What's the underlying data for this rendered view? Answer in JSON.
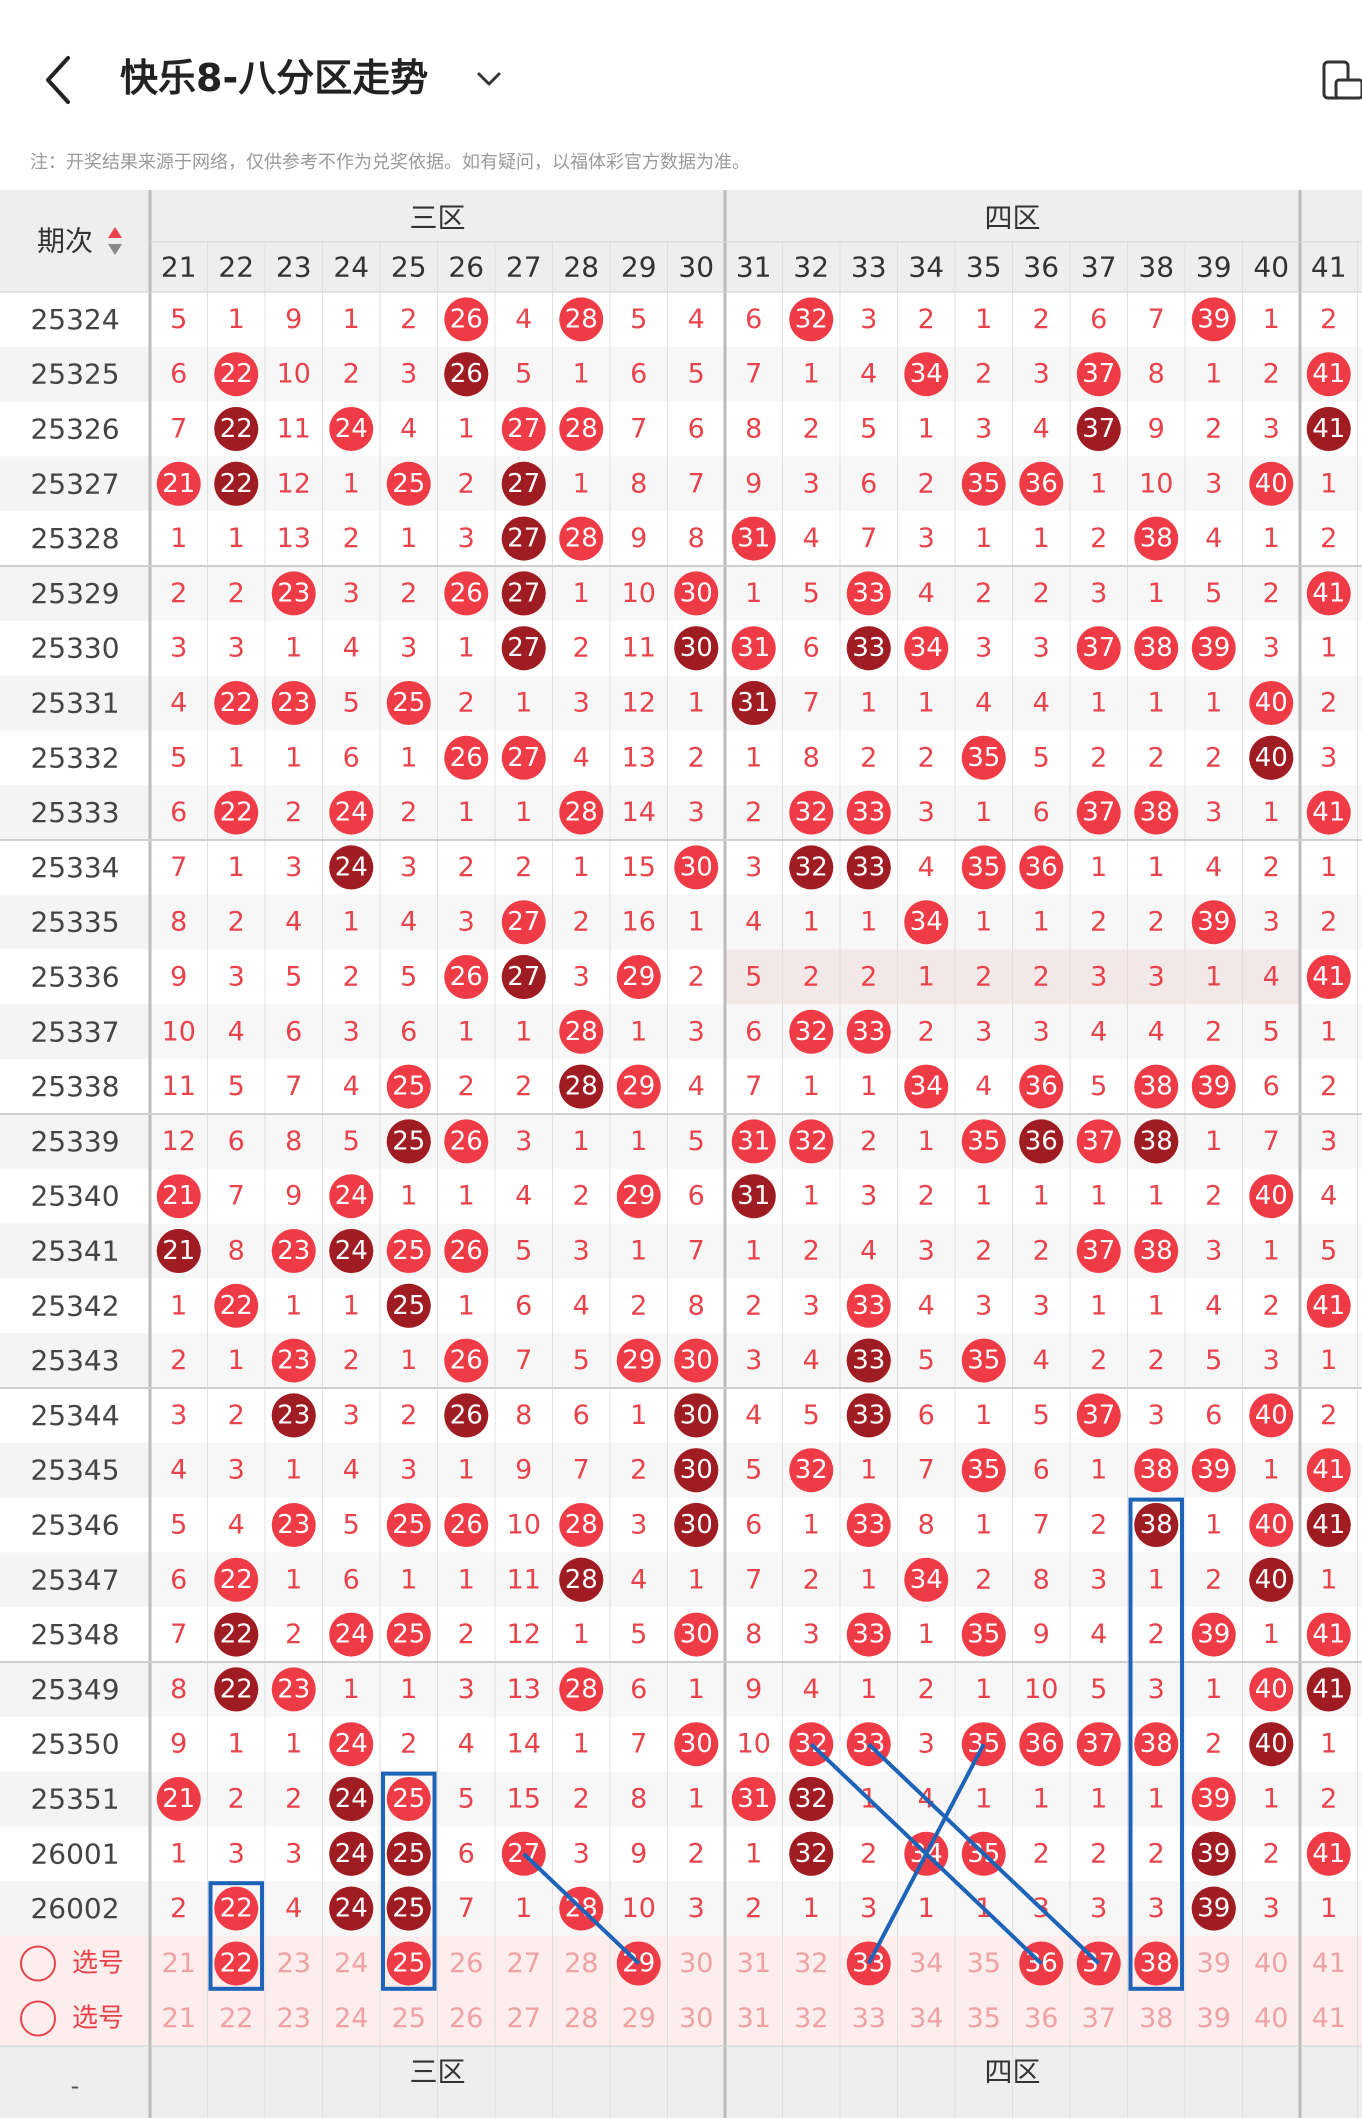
{
  "header": {
    "title": "快乐8-八分区走势",
    "note": "注：开奖结果来源于网络，仅供参考不作为兑奖依据。如有疑问，以福体彩官方数据为准。"
  },
  "table": {
    "period_label": "期次",
    "zones": [
      "三区",
      "四区"
    ],
    "columns": [
      21,
      22,
      23,
      24,
      25,
      26,
      27,
      28,
      29,
      30,
      31,
      32,
      33,
      34,
      35,
      36,
      37,
      38,
      39,
      40,
      41
    ],
    "select_label": "选号",
    "bottom_dash": "-",
    "rows": [
      {
        "p": "25324",
        "v": [
          "5",
          "1",
          "9",
          "1",
          "2",
          "H",
          "4",
          "H",
          "5",
          "4",
          "6",
          "H",
          "3",
          "2",
          "1",
          "2",
          "6",
          "7",
          "H",
          "1",
          "2"
        ]
      },
      {
        "p": "25325",
        "v": [
          "6",
          "H",
          "10",
          "2",
          "3",
          "H",
          "5",
          "1",
          "6",
          "5",
          "7",
          "1",
          "4",
          "H",
          "2",
          "3",
          "H",
          "8",
          "1",
          "2",
          "H"
        ]
      },
      {
        "p": "25326",
        "v": [
          "7",
          "H",
          "11",
          "H",
          "4",
          "1",
          "H",
          "H",
          "7",
          "6",
          "8",
          "2",
          "5",
          "1",
          "3",
          "4",
          "H",
          "9",
          "2",
          "3",
          "H"
        ]
      },
      {
        "p": "25327",
        "v": [
          "H",
          "H",
          "12",
          "1",
          "H",
          "2",
          "H",
          "1",
          "8",
          "7",
          "9",
          "3",
          "6",
          "2",
          "H",
          "H",
          "1",
          "10",
          "3",
          "H",
          "1"
        ]
      },
      {
        "p": "25328",
        "v": [
          "1",
          "1",
          "13",
          "2",
          "1",
          "3",
          "H",
          "H",
          "9",
          "8",
          "H",
          "4",
          "7",
          "3",
          "1",
          "1",
          "2",
          "H",
          "4",
          "1",
          "2"
        ]
      },
      {
        "p": "25329",
        "v": [
          "2",
          "2",
          "H",
          "3",
          "2",
          "H",
          "H",
          "1",
          "10",
          "H",
          "1",
          "5",
          "H",
          "4",
          "2",
          "2",
          "3",
          "1",
          "5",
          "2",
          "H"
        ]
      },
      {
        "p": "25330",
        "v": [
          "3",
          "3",
          "1",
          "4",
          "3",
          "1",
          "H",
          "2",
          "11",
          "H",
          "H",
          "6",
          "H",
          "H",
          "3",
          "3",
          "H",
          "H",
          "H",
          "3",
          "1"
        ]
      },
      {
        "p": "25331",
        "v": [
          "4",
          "H",
          "H",
          "5",
          "H",
          "2",
          "1",
          "3",
          "12",
          "1",
          "H",
          "7",
          "1",
          "1",
          "4",
          "4",
          "1",
          "1",
          "1",
          "H",
          "2"
        ]
      },
      {
        "p": "25332",
        "v": [
          "5",
          "1",
          "1",
          "6",
          "1",
          "H",
          "H",
          "4",
          "13",
          "2",
          "1",
          "8",
          "2",
          "2",
          "H",
          "5",
          "2",
          "2",
          "2",
          "H",
          "3"
        ]
      },
      {
        "p": "25333",
        "v": [
          "6",
          "H",
          "2",
          "H",
          "2",
          "1",
          "1",
          "H",
          "14",
          "3",
          "2",
          "H",
          "H",
          "3",
          "1",
          "6",
          "H",
          "H",
          "3",
          "1",
          "H"
        ]
      },
      {
        "p": "25334",
        "v": [
          "7",
          "1",
          "3",
          "H",
          "3",
          "2",
          "2",
          "1",
          "15",
          "H",
          "3",
          "H",
          "H",
          "4",
          "H",
          "H",
          "1",
          "1",
          "4",
          "2",
          "1"
        ]
      },
      {
        "p": "25335",
        "v": [
          "8",
          "2",
          "4",
          "1",
          "4",
          "3",
          "H",
          "2",
          "16",
          "1",
          "4",
          "1",
          "1",
          "H",
          "1",
          "1",
          "2",
          "2",
          "H",
          "3",
          "2"
        ]
      },
      {
        "p": "25336",
        "v": [
          "9",
          "3",
          "5",
          "2",
          "5",
          "H",
          "H",
          "3",
          "H",
          "2",
          "5",
          "2",
          "2",
          "1",
          "2",
          "2",
          "3",
          "3",
          "1",
          "4",
          "H"
        ]
      },
      {
        "p": "25337",
        "v": [
          "10",
          "4",
          "6",
          "3",
          "6",
          "1",
          "1",
          "H",
          "1",
          "3",
          "6",
          "H",
          "H",
          "2",
          "3",
          "3",
          "4",
          "4",
          "2",
          "5",
          "1"
        ]
      },
      {
        "p": "25338",
        "v": [
          "11",
          "5",
          "7",
          "4",
          "H",
          "2",
          "2",
          "H",
          "H",
          "4",
          "7",
          "1",
          "1",
          "H",
          "4",
          "H",
          "5",
          "H",
          "H",
          "6",
          "2"
        ]
      },
      {
        "p": "25339",
        "v": [
          "12",
          "6",
          "8",
          "5",
          "H",
          "H",
          "3",
          "1",
          "1",
          "5",
          "H",
          "H",
          "2",
          "1",
          "H",
          "H",
          "H",
          "H",
          "1",
          "7",
          "3"
        ]
      },
      {
        "p": "25340",
        "v": [
          "H",
          "7",
          "9",
          "H",
          "1",
          "1",
          "4",
          "2",
          "H",
          "6",
          "H",
          "1",
          "3",
          "2",
          "1",
          "1",
          "1",
          "1",
          "2",
          "H",
          "4"
        ]
      },
      {
        "p": "25341",
        "v": [
          "H",
          "8",
          "H",
          "H",
          "H",
          "H",
          "5",
          "3",
          "1",
          "7",
          "1",
          "2",
          "4",
          "3",
          "2",
          "2",
          "H",
          "H",
          "3",
          "1",
          "5"
        ]
      },
      {
        "p": "25342",
        "v": [
          "1",
          "H",
          "1",
          "1",
          "H",
          "1",
          "6",
          "4",
          "2",
          "8",
          "2",
          "3",
          "H",
          "4",
          "3",
          "3",
          "1",
          "1",
          "4",
          "2",
          "H"
        ]
      },
      {
        "p": "25343",
        "v": [
          "2",
          "1",
          "H",
          "2",
          "1",
          "H",
          "7",
          "5",
          "H",
          "H",
          "3",
          "4",
          "H",
          "5",
          "H",
          "4",
          "2",
          "2",
          "5",
          "3",
          "1"
        ]
      },
      {
        "p": "25344",
        "v": [
          "3",
          "2",
          "H",
          "3",
          "2",
          "H",
          "8",
          "6",
          "1",
          "H",
          "4",
          "5",
          "H",
          "6",
          "1",
          "5",
          "H",
          "3",
          "6",
          "H",
          "2"
        ]
      },
      {
        "p": "25345",
        "v": [
          "4",
          "3",
          "1",
          "4",
          "3",
          "1",
          "9",
          "7",
          "2",
          "H",
          "5",
          "H",
          "1",
          "7",
          "H",
          "6",
          "1",
          "H",
          "H",
          "1",
          "H"
        ]
      },
      {
        "p": "25346",
        "v": [
          "5",
          "4",
          "H",
          "5",
          "H",
          "H",
          "10",
          "H",
          "3",
          "H",
          "6",
          "1",
          "H",
          "8",
          "1",
          "7",
          "2",
          "H",
          "1",
          "H",
          "H"
        ]
      },
      {
        "p": "25347",
        "v": [
          "6",
          "H",
          "1",
          "6",
          "1",
          "1",
          "11",
          "H",
          "4",
          "1",
          "7",
          "2",
          "1",
          "H",
          "2",
          "8",
          "3",
          "1",
          "2",
          "H",
          "1"
        ]
      },
      {
        "p": "25348",
        "v": [
          "7",
          "H",
          "2",
          "H",
          "H",
          "2",
          "12",
          "1",
          "5",
          "H",
          "8",
          "3",
          "H",
          "1",
          "H",
          "9",
          "4",
          "2",
          "H",
          "1",
          "H"
        ]
      },
      {
        "p": "25349",
        "v": [
          "8",
          "H",
          "H",
          "1",
          "1",
          "3",
          "13",
          "H",
          "6",
          "1",
          "9",
          "4",
          "1",
          "2",
          "1",
          "10",
          "5",
          "3",
          "1",
          "H",
          "H"
        ]
      },
      {
        "p": "25350",
        "v": [
          "9",
          "1",
          "1",
          "H",
          "2",
          "4",
          "14",
          "1",
          "7",
          "H",
          "10",
          "H",
          "H",
          "3",
          "H",
          "H",
          "H",
          "H",
          "2",
          "H",
          "1"
        ]
      },
      {
        "p": "25351",
        "v": [
          "H",
          "2",
          "2",
          "H",
          "H",
          "5",
          "15",
          "2",
          "8",
          "1",
          "H",
          "H",
          "1",
          "4",
          "1",
          "1",
          "1",
          "1",
          "H",
          "1",
          "2"
        ]
      },
      {
        "p": "26001",
        "v": [
          "1",
          "3",
          "3",
          "H",
          "H",
          "6",
          "H",
          "3",
          "9",
          "2",
          "1",
          "H",
          "2",
          "H",
          "H",
          "2",
          "2",
          "2",
          "H",
          "2",
          "H"
        ]
      },
      {
        "p": "26002",
        "v": [
          "2",
          "H",
          "4",
          "H",
          "H",
          "7",
          "1",
          "H",
          "10",
          "3",
          "2",
          "1",
          "3",
          "1",
          "1",
          "3",
          "3",
          "3",
          "H",
          "3",
          "1"
        ]
      }
    ],
    "dark_cells": [
      [
        1,
        1
      ],
      [
        2,
        1
      ],
      [
        3,
        1
      ],
      [
        2,
        6
      ],
      [
        3,
        6
      ],
      [
        4,
        6
      ],
      [
        6,
        6
      ],
      [
        4,
        1
      ],
      [
        30,
        6
      ],
      [
        30,
        7
      ],
      [
        1,
        2
      ],
      [
        1,
        7
      ],
      [
        2,
        8
      ],
      [
        3,
        6
      ],
      [
        1,
        8
      ],
      [
        15,
        14
      ],
      [
        15,
        15
      ],
      [
        15,
        16
      ],
      [
        15,
        17
      ],
      [
        6,
        16
      ],
      [
        6,
        17
      ],
      [
        6,
        18
      ],
      [
        18,
        12
      ],
      [
        19,
        12
      ],
      [
        20,
        12
      ],
      [
        17,
        2
      ],
      [
        17,
        3
      ],
      [
        17,
        4
      ],
      [
        17,
        5
      ],
      [
        17,
        25
      ],
      [
        19,
        9
      ],
      [
        20,
        9
      ],
      [
        21,
        9
      ],
      [
        22,
        9
      ],
      [
        22,
        19
      ],
      [
        22,
        20
      ],
      [
        23,
        1
      ],
      [
        24,
        1
      ],
      [
        25,
        1
      ],
      [
        25,
        3
      ],
      [
        26,
        3
      ],
      [
        27,
        3
      ],
      [
        28,
        3
      ],
      [
        26,
        4
      ],
      [
        27,
        4
      ],
      [
        28,
        4
      ],
      [
        26,
        11
      ],
      [
        27,
        11
      ],
      [
        28,
        11
      ],
      [
        26,
        14
      ],
      [
        26,
        15
      ],
      [
        26,
        16
      ],
      [
        26,
        17
      ],
      [
        27,
        18
      ],
      [
        28,
        18
      ],
      [
        29,
        18
      ]
    ],
    "select_rows": [
      {
        "picked": [
          22,
          25,
          29,
          33,
          36,
          37,
          38
        ]
      },
      {
        "picked": []
      }
    ]
  },
  "colors": {
    "red": "#ee3b45",
    "dark": "#9e1c22",
    "text_red": "#e8434b",
    "blue": "#1d63b8",
    "header_bg": "#eeeeee",
    "select_bg": "#fdeeed"
  }
}
